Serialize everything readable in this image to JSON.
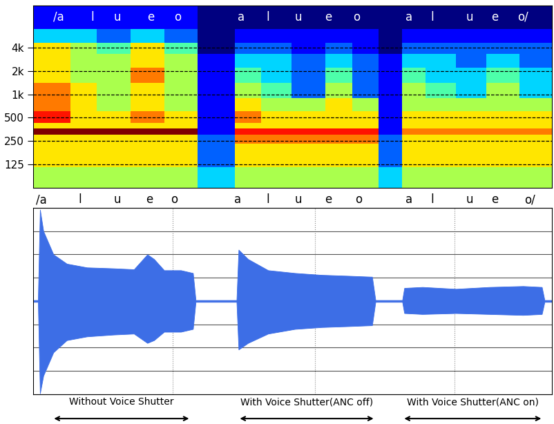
{
  "chart_data": [
    {
      "type": "heatmap",
      "log": "y",
      "grid": true,
      "tick_labels": "y",
      "xlim": [
        0,
        7.73
      ],
      "ylim": [
        62,
        14000
      ],
      "yticks": [
        {
          "value": 125,
          "label": "125"
        },
        {
          "value": 250,
          "label": "250"
        },
        {
          "value": 500,
          "label": "500"
        },
        {
          "value": 1000,
          "label": "1k"
        },
        {
          "value": 2000,
          "label": "2k"
        },
        {
          "value": 4000,
          "label": "4k"
        }
      ],
      "x_edges": [
        0,
        0.55,
        0.95,
        1.45,
        1.95,
        2.45,
        3.0,
        3.4,
        3.85,
        4.35,
        4.75,
        5.15,
        5.5,
        5.85,
        6.3,
        6.75,
        7.25,
        7.73
      ],
      "y_edges": [
        62,
        115,
        150,
        230,
        300,
        360,
        430,
        600,
        900,
        1400,
        2200,
        3300,
        4600,
        7000,
        14000
      ],
      "cells": [
        [
          5,
          5,
          5,
          5,
          5,
          3,
          5,
          5,
          5,
          5,
          5,
          3,
          5,
          5,
          5,
          5,
          5
        ],
        [
          6,
          6,
          6,
          6,
          6,
          2,
          6,
          6,
          6,
          6,
          6,
          2,
          6,
          6,
          6,
          6,
          6
        ],
        [
          6,
          6,
          6,
          6,
          6,
          2,
          6,
          6,
          6,
          6,
          6,
          2,
          6,
          6,
          6,
          6,
          6
        ],
        [
          6,
          6,
          6,
          6,
          6,
          2,
          7,
          7,
          7,
          7,
          7,
          2,
          6,
          6,
          6,
          6,
          6
        ],
        [
          9,
          9,
          9,
          9,
          9,
          1,
          8,
          8,
          8,
          8,
          8,
          1,
          7,
          7,
          7,
          7,
          7
        ],
        [
          6,
          6,
          6,
          6,
          6,
          1,
          6,
          6,
          6,
          6,
          6,
          1,
          6,
          6,
          6,
          6,
          6
        ],
        [
          8,
          6,
          6,
          7,
          6,
          1,
          7,
          6,
          6,
          6,
          6,
          1,
          6,
          6,
          6,
          6,
          6
        ],
        [
          7,
          6,
          5,
          6,
          5,
          1,
          6,
          5,
          5,
          6,
          5,
          1,
          5,
          5,
          5,
          5,
          5
        ],
        [
          7,
          6,
          5,
          6,
          5,
          1,
          5,
          4,
          2,
          5,
          2,
          1,
          5,
          4,
          3,
          5,
          3
        ],
        [
          6,
          5,
          5,
          7,
          5,
          1,
          4,
          3,
          2,
          4,
          2,
          1,
          4,
          3,
          3,
          4,
          3
        ],
        [
          6,
          5,
          5,
          6,
          5,
          1,
          3,
          3,
          2,
          3,
          2,
          1,
          3,
          3,
          2,
          3,
          2
        ],
        [
          6,
          5,
          4,
          6,
          4,
          0,
          2,
          2,
          1,
          2,
          1,
          0,
          2,
          2,
          2,
          2,
          2
        ],
        [
          3,
          3,
          2,
          3,
          2,
          0,
          1,
          1,
          1,
          1,
          1,
          0,
          1,
          1,
          1,
          1,
          1
        ],
        [
          1,
          1,
          1,
          1,
          1,
          0,
          0,
          0,
          0,
          0,
          0,
          0,
          0,
          0,
          0,
          0,
          0
        ]
      ],
      "annotations": {
        "x": [
          0.38,
          0.88,
          1.25,
          1.75,
          2.15,
          3.1,
          3.5,
          3.95,
          4.4,
          4.82,
          5.6,
          5.95,
          6.5,
          6.88,
          7.3
        ],
        "labels": [
          "/a",
          "l",
          "u",
          "e",
          "o",
          "a",
          "l",
          "u",
          "e",
          "o",
          "a",
          "l",
          "u",
          "e",
          "o/"
        ]
      }
    },
    {
      "type": "area",
      "grid": true,
      "tick_labels": false,
      "color": "#3d6ee6",
      "xlim": [
        0,
        7.73
      ],
      "ylim": [
        -1,
        1
      ],
      "xticks": [
        2.08,
        4.2,
        6.28
      ],
      "yticks": [
        -1,
        -0.75,
        -0.5,
        -0.25,
        0,
        0.25,
        0.5,
        0.75,
        1
      ],
      "x": [
        0.0,
        0.07,
        0.1,
        0.15,
        0.3,
        0.5,
        0.8,
        1.2,
        1.5,
        1.7,
        1.8,
        1.95,
        2.2,
        2.38,
        2.42,
        3.0,
        3.03,
        3.06,
        3.2,
        3.5,
        3.9,
        4.3,
        4.7,
        5.05,
        5.1,
        5.5,
        5.53,
        5.8,
        6.3,
        6.8,
        7.3,
        7.58,
        7.62,
        7.73
      ],
      "upper": [
        0.01,
        0.01,
        0.98,
        0.75,
        0.5,
        0.4,
        0.36,
        0.35,
        0.34,
        0.5,
        0.45,
        0.33,
        0.33,
        0.3,
        0.01,
        0.01,
        0.01,
        0.55,
        0.45,
        0.33,
        0.3,
        0.28,
        0.27,
        0.26,
        0.01,
        0.01,
        0.14,
        0.15,
        0.13,
        0.15,
        0.16,
        0.15,
        0.01,
        0.01
      ],
      "lower": [
        -0.01,
        -0.01,
        -0.99,
        -0.8,
        -0.55,
        -0.42,
        -0.38,
        -0.36,
        -0.35,
        -0.45,
        -0.42,
        -0.33,
        -0.33,
        -0.3,
        -0.01,
        -0.01,
        -0.01,
        -0.52,
        -0.45,
        -0.35,
        -0.3,
        -0.28,
        -0.27,
        -0.26,
        -0.01,
        -0.01,
        -0.13,
        -0.14,
        -0.13,
        -0.14,
        -0.15,
        -0.14,
        -0.01,
        -0.01
      ],
      "annotations": {
        "x": [
          0.12,
          0.7,
          1.25,
          1.73,
          2.1,
          3.05,
          3.5,
          3.95,
          4.4,
          4.85,
          5.6,
          5.95,
          6.5,
          6.88,
          7.4
        ],
        "labels": [
          "/a",
          "l",
          "u",
          "e",
          "o",
          "a",
          "l",
          "u",
          "e",
          "o",
          "a",
          "l",
          "u",
          "e",
          "o/"
        ]
      },
      "spans": [
        {
          "label": "Without Voice Shutter",
          "x": [
            0.28,
            2.35
          ]
        },
        {
          "label": "With Voice Shutter(ANC off)",
          "x": [
            3.05,
            5.1
          ]
        },
        {
          "label": "With Voice Shutter(ANC on)",
          "x": [
            5.5,
            7.6
          ]
        }
      ]
    }
  ]
}
